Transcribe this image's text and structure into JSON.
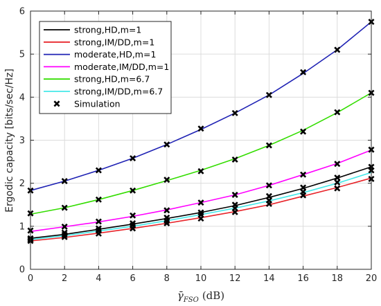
{
  "chart_data": {
    "type": "line",
    "title": "",
    "xlabel": {
      "symbol": "γ̄",
      "subscript": "FSO",
      "unit": "(dB)"
    },
    "ylabel": "Ergodic capacity [bits/sec/Hz]",
    "xlim": [
      0,
      20
    ],
    "ylim": [
      0,
      6
    ],
    "xticks": [
      0,
      2,
      4,
      6,
      8,
      10,
      12,
      14,
      16,
      18,
      20
    ],
    "yticks": [
      0,
      1,
      2,
      3,
      4,
      5,
      6
    ],
    "grid": true,
    "legend_position": "top-left",
    "x": [
      0,
      2,
      4,
      6,
      8,
      10,
      12,
      14,
      16,
      18,
      20
    ],
    "series": [
      {
        "name": "strong,HD,m=1",
        "color": "#000000",
        "values": [
          0.72,
          0.81,
          0.93,
          1.05,
          1.18,
          1.32,
          1.48,
          1.67,
          1.88,
          2.12,
          2.38
        ]
      },
      {
        "name": "strong,IM/DD,m=1",
        "color": "#e8242a",
        "values": [
          0.66,
          0.74,
          0.84,
          0.95,
          1.07,
          1.2,
          1.34,
          1.5,
          1.7,
          1.9,
          2.12
        ]
      },
      {
        "name": "moderate,HD,m=1",
        "color": "#1f22b4",
        "values": [
          1.83,
          2.05,
          2.3,
          2.58,
          2.9,
          3.25,
          3.63,
          4.05,
          4.55,
          5.1,
          5.75
        ]
      },
      {
        "name": "moderate,IM/DD,m=1",
        "color": "#ff00ff",
        "values": [
          0.88,
          0.99,
          1.1,
          1.23,
          1.38,
          1.55,
          1.73,
          1.95,
          2.2,
          2.46,
          2.77
        ]
      },
      {
        "name": "strong,HD,m=6.7",
        "color": "#33dd00",
        "values": [
          1.28,
          1.43,
          1.62,
          1.83,
          2.06,
          2.3,
          2.57,
          2.88,
          3.23,
          3.64,
          4.1
        ]
      },
      {
        "name": "strong,IM/DD,m=6.7",
        "color": "#44e8e8",
        "values": [
          0.69,
          0.78,
          0.89,
          1.0,
          1.13,
          1.27,
          1.42,
          1.59,
          1.78,
          2.0,
          2.25
        ]
      }
    ],
    "simulation": {
      "name": "Simulation",
      "marker": "x",
      "points": [
        [
          [
            0,
            0.72
          ],
          [
            2,
            0.85
          ],
          [
            4,
            0.95
          ],
          [
            6,
            1.07
          ],
          [
            8,
            1.2
          ],
          [
            10,
            1.32
          ],
          [
            12,
            1.5
          ],
          [
            14,
            1.7
          ],
          [
            16,
            1.9
          ],
          [
            18,
            2.13
          ],
          [
            20,
            2.38
          ]
        ],
        [
          [
            0,
            0.66
          ],
          [
            2,
            0.75
          ],
          [
            4,
            0.83
          ],
          [
            6,
            0.95
          ],
          [
            8,
            1.07
          ],
          [
            10,
            1.18
          ],
          [
            12,
            1.33
          ],
          [
            14,
            1.52
          ],
          [
            16,
            1.72
          ],
          [
            18,
            1.88
          ],
          [
            20,
            2.1
          ]
        ],
        [
          [
            0,
            1.83
          ],
          [
            2,
            2.05
          ],
          [
            4,
            2.3
          ],
          [
            6,
            2.58
          ],
          [
            8,
            2.9
          ],
          [
            10,
            3.27
          ],
          [
            12,
            3.63
          ],
          [
            14,
            4.05
          ],
          [
            16,
            4.58
          ],
          [
            18,
            5.1
          ],
          [
            20,
            5.75
          ]
        ],
        [
          [
            0,
            0.9
          ],
          [
            2,
            0.99
          ],
          [
            4,
            1.11
          ],
          [
            6,
            1.25
          ],
          [
            8,
            1.37
          ],
          [
            10,
            1.55
          ],
          [
            12,
            1.73
          ],
          [
            14,
            1.95
          ],
          [
            16,
            2.2
          ],
          [
            18,
            2.45
          ],
          [
            20,
            2.78
          ]
        ],
        [
          [
            0,
            1.3
          ],
          [
            2,
            1.43
          ],
          [
            4,
            1.62
          ],
          [
            6,
            1.83
          ],
          [
            8,
            2.08
          ],
          [
            10,
            2.28
          ],
          [
            12,
            2.55
          ],
          [
            14,
            2.88
          ],
          [
            16,
            3.2
          ],
          [
            18,
            3.65
          ],
          [
            20,
            4.1
          ]
        ],
        [
          [
            0,
            0.69
          ],
          [
            2,
            0.8
          ],
          [
            4,
            0.9
          ],
          [
            6,
            1.02
          ],
          [
            8,
            1.13
          ],
          [
            10,
            1.27
          ],
          [
            12,
            1.42
          ],
          [
            14,
            1.6
          ],
          [
            16,
            1.8
          ],
          [
            18,
            2.02
          ],
          [
            20,
            2.3
          ]
        ]
      ]
    }
  }
}
